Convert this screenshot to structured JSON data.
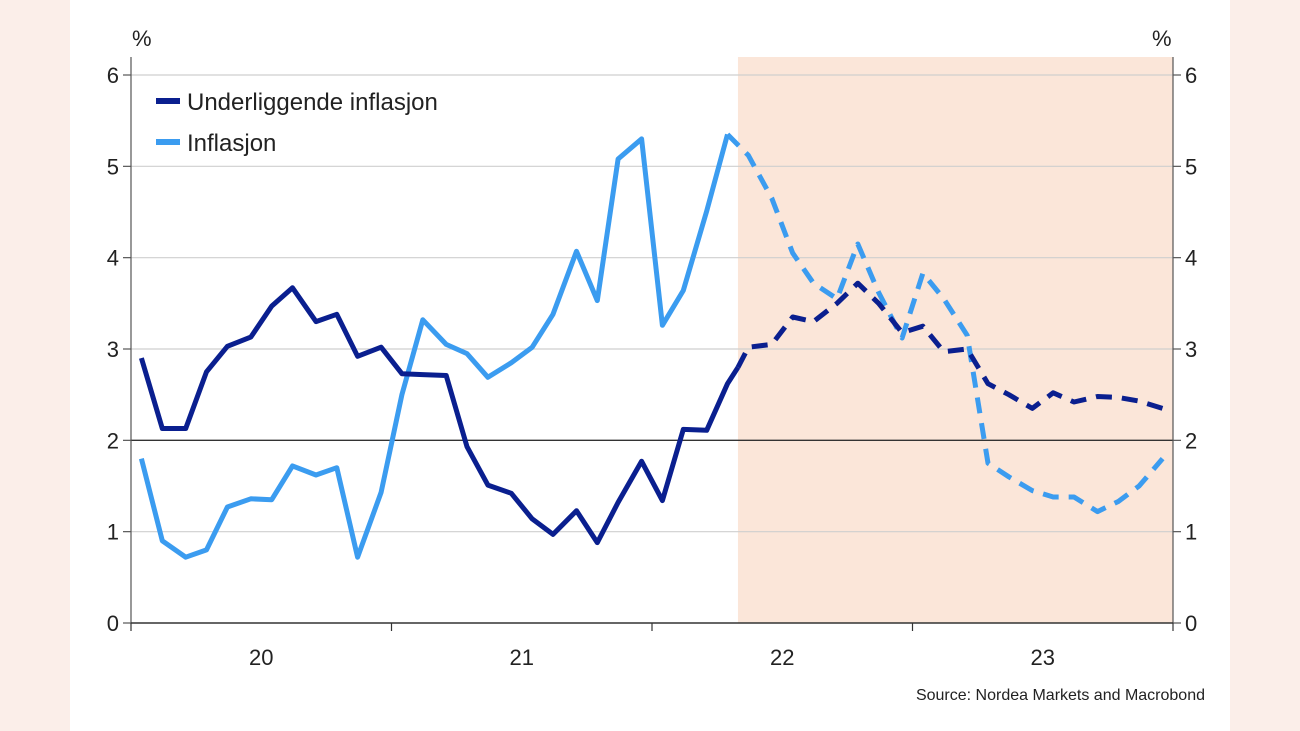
{
  "chart_data": {
    "type": "line",
    "y_unit_left": "%",
    "y_unit_right": "%",
    "ylim": [
      0,
      6
    ],
    "yticks": [
      "0",
      "1",
      "2",
      "3",
      "4",
      "5",
      "6"
    ],
    "xlim": [
      2019.5,
      2023.5
    ],
    "x_labels": [
      {
        "text": "20",
        "at": 2020.0
      },
      {
        "text": "21",
        "at": 2021.0
      },
      {
        "text": "22",
        "at": 2022.0
      },
      {
        "text": "23",
        "at": 2023.0
      }
    ],
    "x_boundaries": [
      2019.5,
      2020.5,
      2021.5,
      2022.5,
      2023.5
    ],
    "forecast_start": 2021.83,
    "shading_color": "#fbe6d9",
    "reference_line": 2,
    "legend_position": "top-left",
    "series": [
      {
        "name": "Underliggende inflasjon",
        "color": "#0a1f8f",
        "actual": {
          "x": [
            2019.54,
            2019.62,
            2019.71,
            2019.79,
            2019.87,
            2019.96,
            2020.04,
            2020.12,
            2020.21,
            2020.29,
            2020.37,
            2020.46,
            2020.54,
            2020.62,
            2020.71,
            2020.79,
            2020.87,
            2020.96,
            2021.04,
            2021.12,
            2021.21,
            2021.29,
            2021.37,
            2021.46,
            2021.54,
            2021.62,
            2021.71,
            2021.79,
            2021.83
          ],
          "y": [
            2.9,
            2.13,
            2.13,
            2.75,
            3.03,
            3.13,
            3.47,
            3.67,
            3.3,
            3.38,
            2.92,
            3.02,
            2.73,
            2.72,
            2.71,
            1.93,
            1.51,
            1.42,
            1.14,
            0.97,
            1.23,
            0.88,
            1.32,
            1.77,
            1.34,
            2.12,
            2.11,
            2.62,
            2.8
          ]
        },
        "forecast": {
          "x": [
            2021.83,
            2021.87,
            2021.96,
            2022.04,
            2022.12,
            2022.21,
            2022.29,
            2022.37,
            2022.46,
            2022.54,
            2022.62,
            2022.71,
            2022.79,
            2022.87,
            2022.96,
            2023.04,
            2023.12,
            2023.21,
            2023.29,
            2023.37,
            2023.46
          ],
          "y": [
            2.8,
            3.02,
            3.05,
            3.35,
            3.3,
            3.5,
            3.72,
            3.5,
            3.18,
            3.25,
            2.97,
            3.0,
            2.62,
            2.5,
            2.35,
            2.52,
            2.42,
            2.48,
            2.47,
            2.43,
            2.35
          ]
        }
      },
      {
        "name": "Inflasjon",
        "color": "#3b9cf0",
        "actual": {
          "x": [
            2019.54,
            2019.62,
            2019.71,
            2019.79,
            2019.87,
            2019.96,
            2020.04,
            2020.12,
            2020.21,
            2020.29,
            2020.37,
            2020.46,
            2020.54,
            2020.62,
            2020.71,
            2020.79,
            2020.87,
            2020.96,
            2021.04,
            2021.12,
            2021.21,
            2021.29,
            2021.37,
            2021.46,
            2021.54,
            2021.62,
            2021.71,
            2021.79
          ],
          "y": [
            1.8,
            0.9,
            0.72,
            0.8,
            1.27,
            1.36,
            1.35,
            1.72,
            1.62,
            1.7,
            0.72,
            1.43,
            2.5,
            3.32,
            3.05,
            2.95,
            2.69,
            2.85,
            3.02,
            3.38,
            4.07,
            3.53,
            5.08,
            5.3,
            3.26,
            3.64,
            4.51,
            5.35
          ]
        },
        "forecast": {
          "x": [
            2021.79,
            2021.87,
            2021.96,
            2022.04,
            2022.12,
            2022.21,
            2022.29,
            2022.37,
            2022.46,
            2022.54,
            2022.62,
            2022.71,
            2022.79,
            2022.87,
            2022.96,
            2023.04,
            2023.12,
            2023.21,
            2023.29,
            2023.37,
            2023.46
          ],
          "y": [
            5.35,
            5.12,
            4.65,
            4.05,
            3.72,
            3.55,
            4.15,
            3.62,
            3.12,
            3.83,
            3.55,
            3.15,
            1.75,
            1.6,
            1.45,
            1.38,
            1.38,
            1.22,
            1.33,
            1.5,
            1.8
          ]
        }
      }
    ]
  },
  "source": "Source: Nordea Markets and Macrobond"
}
